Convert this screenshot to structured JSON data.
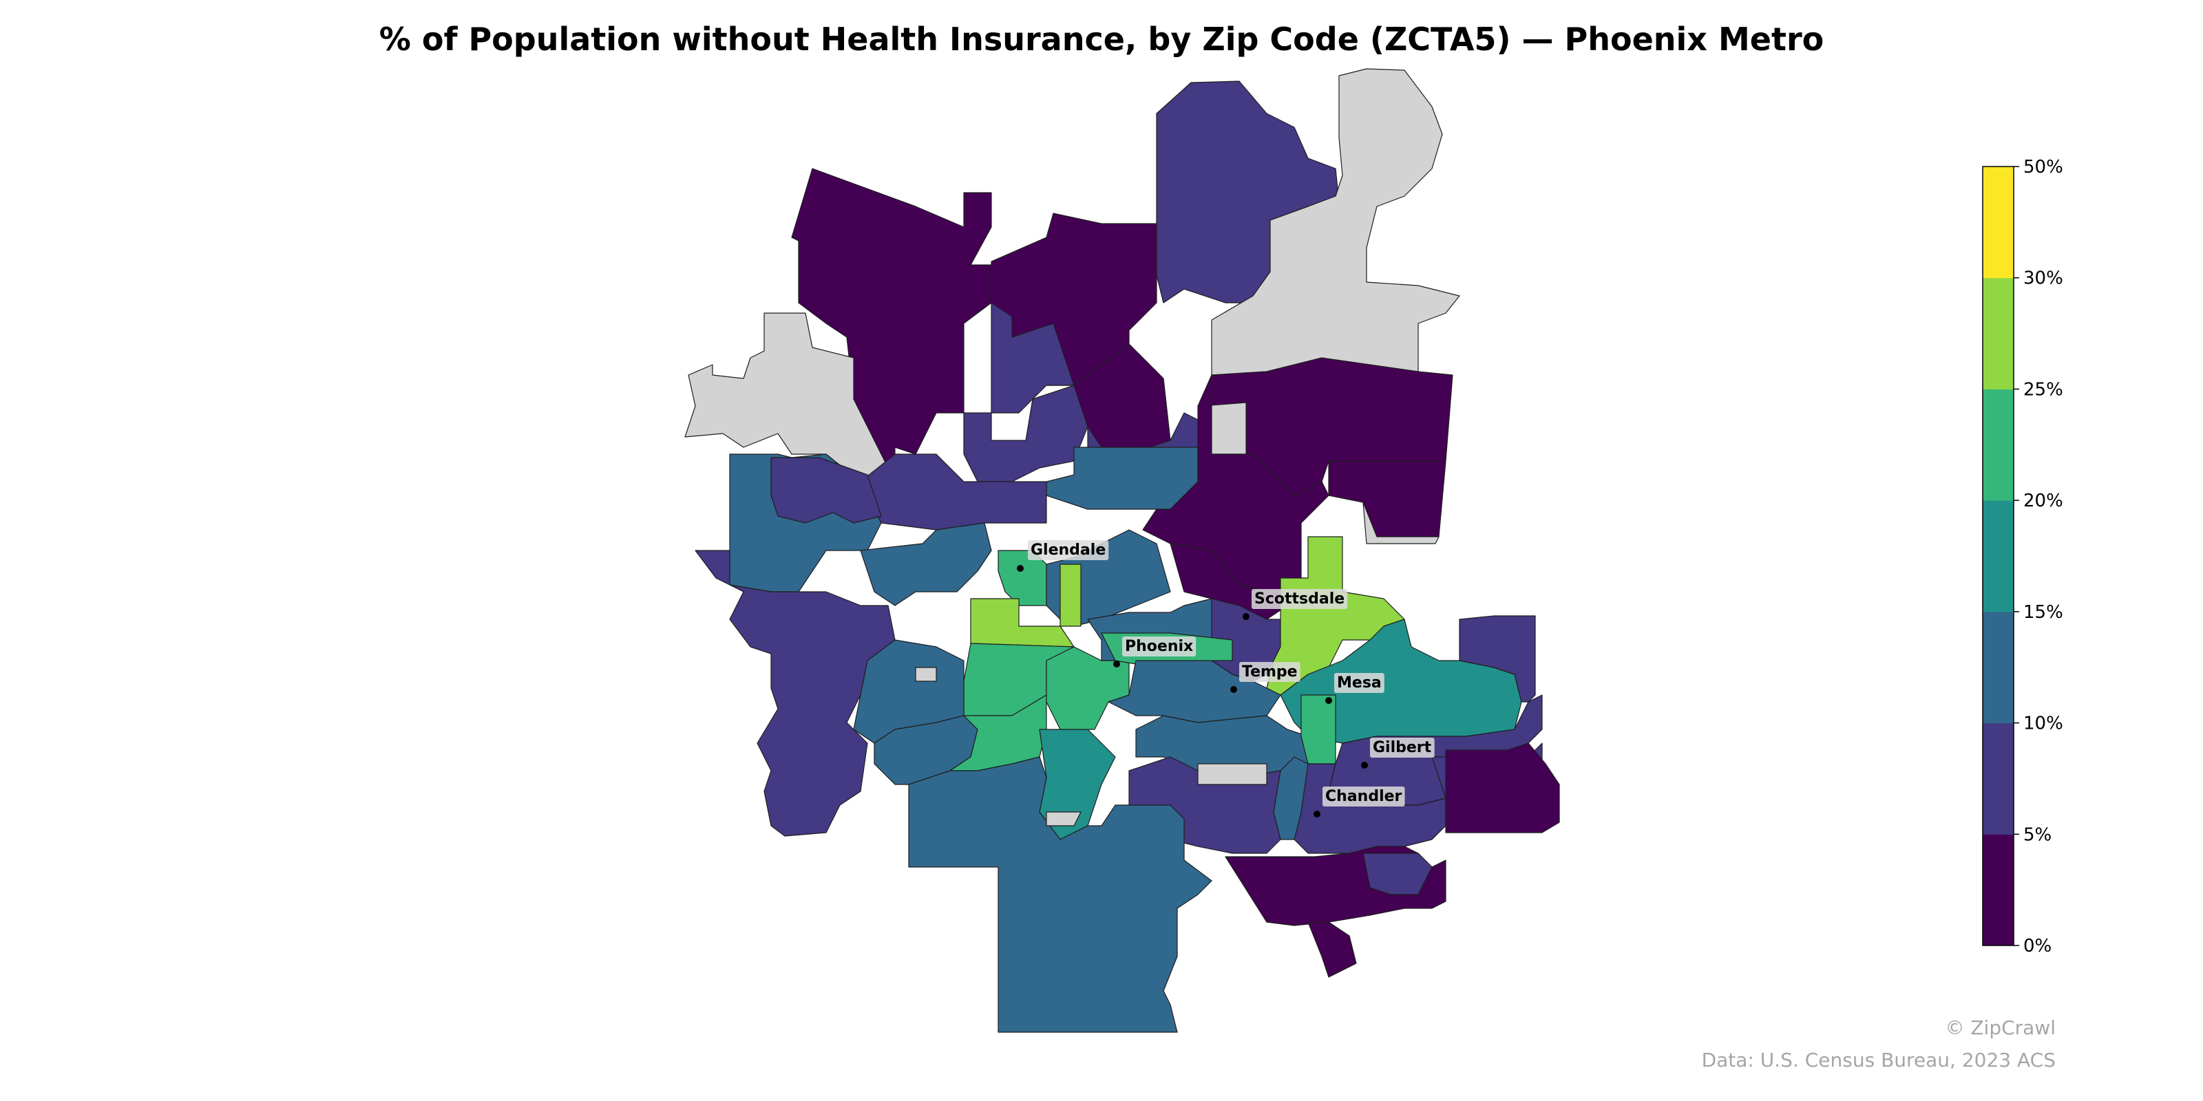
{
  "title": "% of Population without Health Insurance, by Zip Code (ZCTA5) — Phoenix Metro",
  "colors": {
    "no_data": "#d3d3d3",
    "bins": [
      "#440154",
      "#443983",
      "#31688e",
      "#21918c",
      "#35b779",
      "#90d743",
      "#fde725"
    ]
  },
  "colorbar": {
    "tick_labels": [
      "0%",
      "5%",
      "10%",
      "15%",
      "20%",
      "25%",
      "30%",
      "50%"
    ]
  },
  "cities": [
    {
      "name": "Glendale"
    },
    {
      "name": "Scottsdale"
    },
    {
      "name": "Phoenix"
    },
    {
      "name": "Tempe"
    },
    {
      "name": "Mesa"
    },
    {
      "name": "Gilbert"
    },
    {
      "name": "Chandler"
    }
  ],
  "credits": {
    "brand": "© ZipCrawl",
    "source": "Data: U.S. Census Bureau, 2023 ACS"
  },
  "zones": [
    {
      "id": "north-peoria",
      "bin": 0
    },
    {
      "id": "new-river",
      "bin": 0
    },
    {
      "id": "north-central",
      "bin": 0
    },
    {
      "id": "cave-creek",
      "bin": 1
    },
    {
      "id": "nw-unincorporated",
      "bin": -1
    },
    {
      "id": "ne-mountains",
      "bin": -1
    },
    {
      "id": "north-scottsdale",
      "bin": 0
    },
    {
      "id": "fountain-hills",
      "bin": 0
    },
    {
      "id": "fort-mcdowell",
      "bin": -1
    },
    {
      "id": "cave-pocket",
      "bin": -1
    },
    {
      "id": "north-phoenix-a",
      "bin": 1
    },
    {
      "id": "north-phoenix-b",
      "bin": 1
    },
    {
      "id": "north-phoenix-c",
      "bin": 1
    },
    {
      "id": "deer-valley",
      "bin": 2
    },
    {
      "id": "paradise-valley",
      "bin": 0
    },
    {
      "id": "arrowhead",
      "bin": 1
    },
    {
      "id": "sun-city",
      "bin": 2
    },
    {
      "id": "peoria-a",
      "bin": 1
    },
    {
      "id": "west-glendale",
      "bin": 2
    },
    {
      "id": "glendale-core",
      "bin": 4
    },
    {
      "id": "maryvale",
      "bin": 5
    },
    {
      "id": "west-central",
      "bin": 4
    },
    {
      "id": "midtown",
      "bin": 2
    },
    {
      "id": "central-strip",
      "bin": 5
    },
    {
      "id": "east-phoenix",
      "bin": 2
    },
    {
      "id": "arcadia",
      "bin": 0
    },
    {
      "id": "scottsdale-south",
      "bin": 1
    },
    {
      "id": "salt-river",
      "bin": 5
    },
    {
      "id": "buckeye-goodyear",
      "bin": 1
    },
    {
      "id": "tolleson-avondale",
      "bin": 2
    },
    {
      "id": "laveen",
      "bin": 2
    },
    {
      "id": "sw-phoenix",
      "bin": 4
    },
    {
      "id": "south-mountain",
      "bin": 3
    },
    {
      "id": "south-phoenix",
      "bin": 4
    },
    {
      "id": "downtown",
      "bin": 4
    },
    {
      "id": "tempe",
      "bin": 2
    },
    {
      "id": "west-mesa",
      "bin": 2
    },
    {
      "id": "mesa-center",
      "bin": 3
    },
    {
      "id": "mesa-green",
      "bin": 4
    },
    {
      "id": "east-mesa",
      "bin": 1
    },
    {
      "id": "gilbert",
      "bin": 1
    },
    {
      "id": "chandler",
      "bin": 1
    },
    {
      "id": "chandler-west",
      "bin": 2
    },
    {
      "id": "ahwatukee",
      "bin": 1
    },
    {
      "id": "gila-river",
      "bin": 2
    },
    {
      "id": "east-valley",
      "bin": 1
    },
    {
      "id": "queen-creek",
      "bin": 0
    },
    {
      "id": "south-chandler",
      "bin": 0
    },
    {
      "id": "sun-lakes",
      "bin": 0
    },
    {
      "id": "gilbert-south",
      "bin": 1
    },
    {
      "id": "hole-south",
      "bin": -1
    },
    {
      "id": "hole-southwest",
      "bin": -1
    },
    {
      "id": "hole-west",
      "bin": -1
    }
  ]
}
